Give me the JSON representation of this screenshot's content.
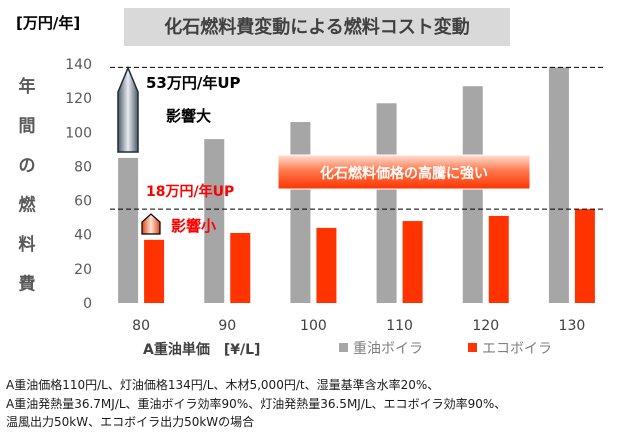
{
  "chart_data": {
    "type": "bar",
    "title": "化石燃料費変動による燃料コスト変動",
    "unit_label": "[万円/年]",
    "ylabel_chars": [
      "年",
      "間",
      "の",
      "燃",
      "料",
      "費"
    ],
    "xlabel": "A重油単価　[¥/L]",
    "categories": [
      "80",
      "90",
      "100",
      "110",
      "120",
      "130"
    ],
    "ylim": [
      0,
      140
    ],
    "yticks": [
      0,
      20,
      40,
      60,
      80,
      100,
      120,
      140
    ],
    "grid": false,
    "legend_position": "bottom-right",
    "series": [
      {
        "name": "重油ボイラ",
        "color": "#a6a6a6",
        "values": [
          85,
          96,
          106,
          117,
          127,
          138
        ]
      },
      {
        "name": "エコボイラ",
        "color": "#ff3300",
        "values": [
          37,
          41,
          44,
          48,
          51,
          55
        ]
      }
    ],
    "reference_lines": [
      138,
      55
    ],
    "annotations": {
      "heavy_increase": "53万円/年UP",
      "heavy_impact": "影響大",
      "eco_increase": "18万円/年UP",
      "eco_impact": "影響小",
      "banner": "化石燃料価格の高騰に強い"
    }
  },
  "notes": [
    "A重油価格110円/L、灯油価格134円/L、木材5,000円/t、湿量基準含水率20%、",
    "A重油発熱量36.7MJ/L、重油ボイラ効率90%、灯油発熱量36.5MJ/L、エコボイラ効率90%、",
    "温風出力50kW、エコボイラ出力50kWの場合"
  ]
}
